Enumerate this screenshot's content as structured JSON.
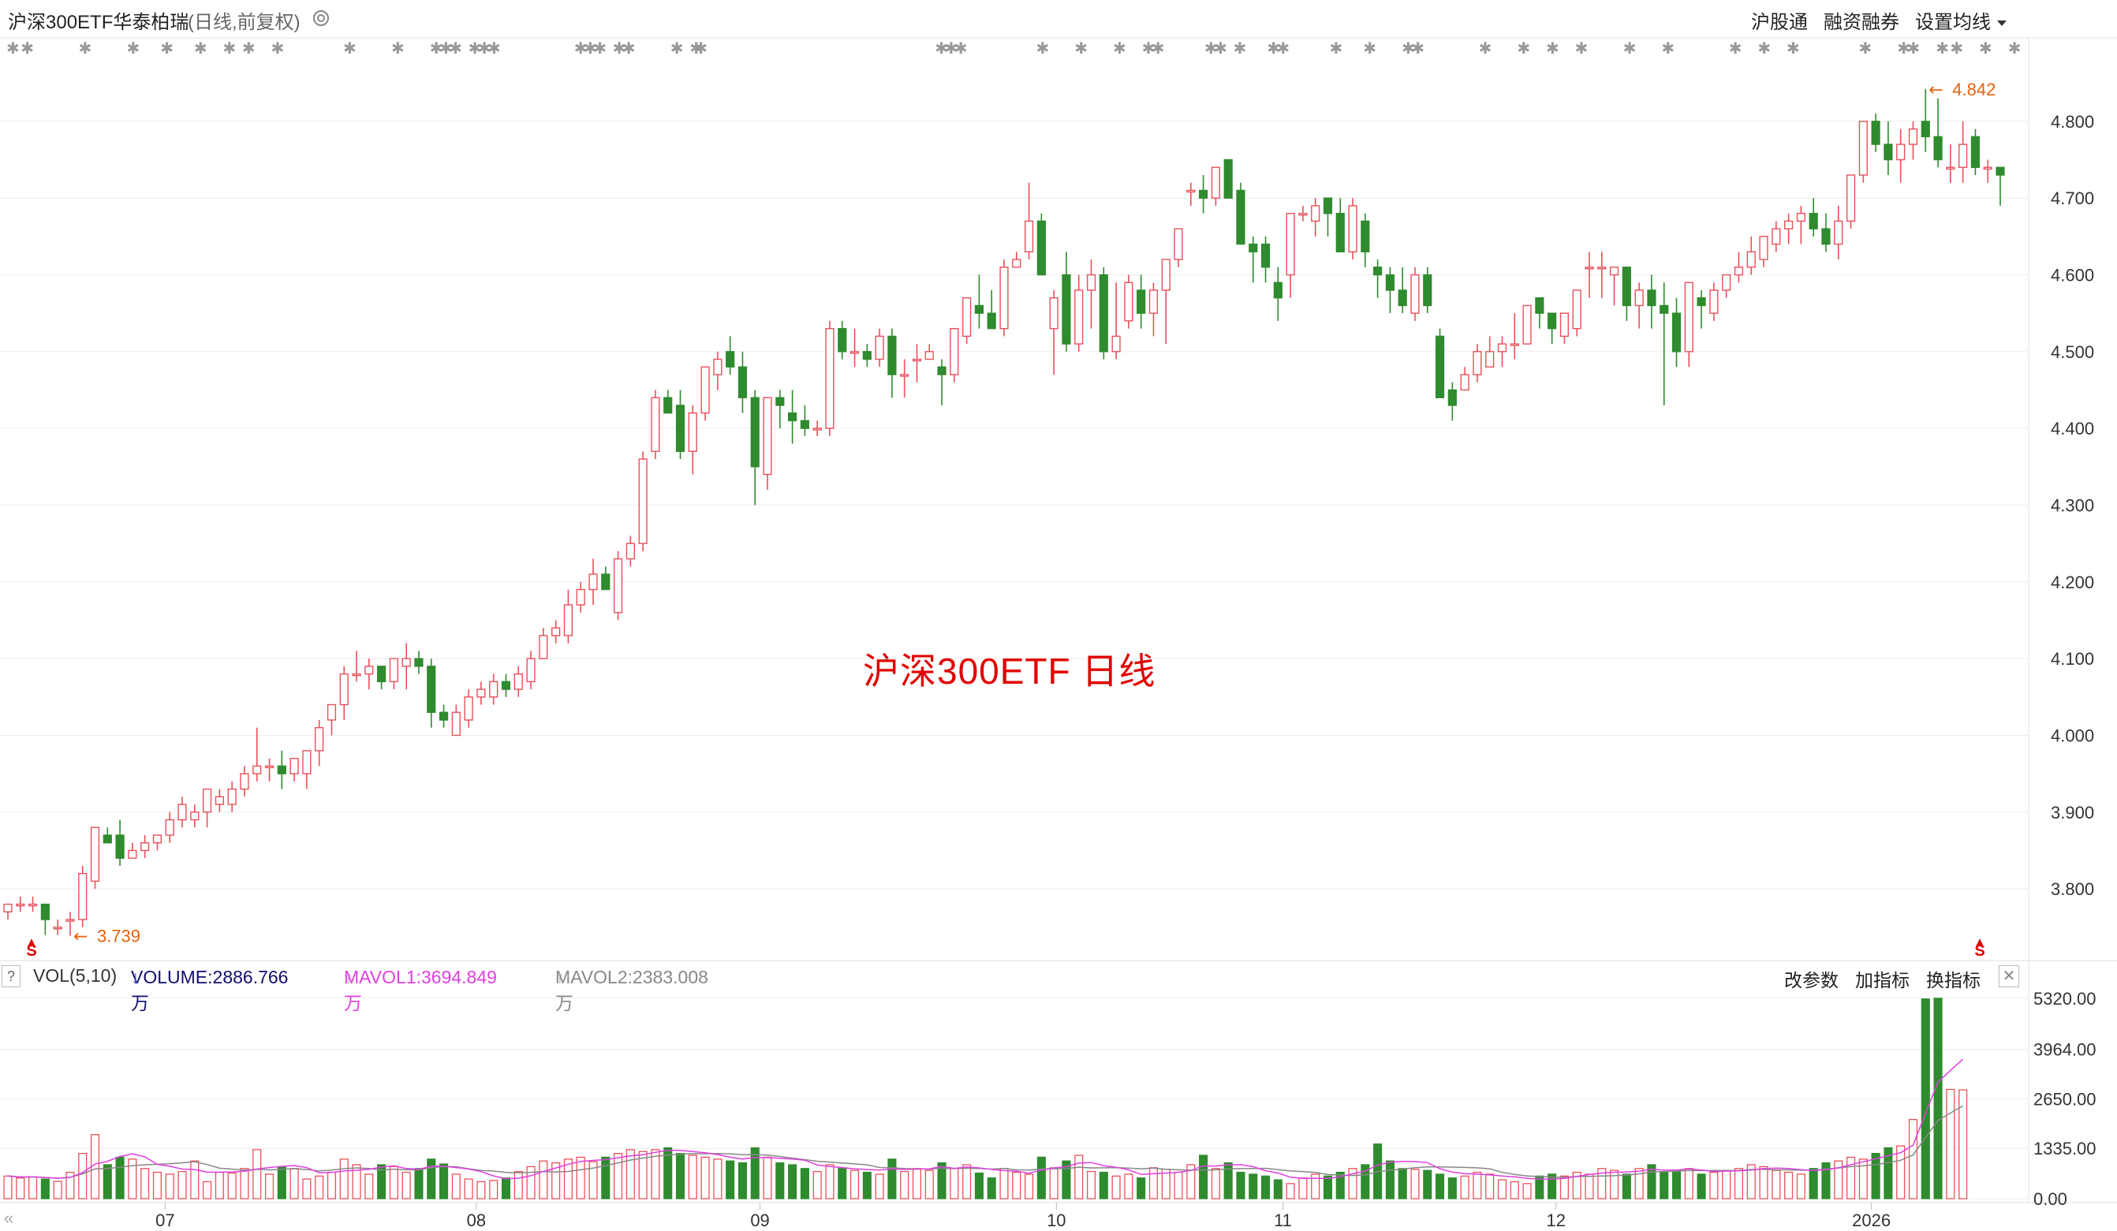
{
  "header": {
    "title": "沪深300ETF华泰柏瑞",
    "subtitle": "(日线,前复权)",
    "buttons": [
      "沪股通",
      "融资融券",
      "设置均线"
    ]
  },
  "watermark": "沪深300ETF  日线",
  "volume_header": {
    "help": "?",
    "name": "VOL(5,10)",
    "volume": "VOLUME:2886.766万",
    "mavol1": "MAVOL1:3694.849万",
    "mavol2": "MAVOL2:2383.008万",
    "right_buttons": [
      "改参数",
      "加指标",
      "换指标"
    ],
    "close": "✕"
  },
  "annotations": {
    "low_label": "3.739",
    "high_label": "4.842",
    "signal_mark": "S"
  },
  "colors": {
    "up": "#e8505a",
    "down": "#2e8b2e",
    "grid": "#ececec",
    "mavol1": "#e040e0",
    "mavol2": "#888888",
    "annotation": "#e8600a",
    "star": "#999999"
  },
  "chart_data": [
    {
      "type": "candlestick",
      "title": "沪深300ETF华泰柏瑞",
      "y_ticks": [
        "4.800",
        "4.700",
        "4.600",
        "4.500",
        "4.400",
        "4.300",
        "4.200",
        "4.100",
        "4.000",
        "3.900",
        "3.800"
      ],
      "ylim": [
        3.72,
        4.88
      ],
      "x_ticks": [
        "07",
        "08",
        "09",
        "10",
        "11",
        "12",
        "2026"
      ],
      "grid": true,
      "min_label": "3.739",
      "max_label": "4.842",
      "ohlc": [
        [
          3.77,
          3.78,
          3.76,
          3.78
        ],
        [
          3.78,
          3.79,
          3.77,
          3.78
        ],
        [
          3.78,
          3.79,
          3.77,
          3.78
        ],
        [
          3.78,
          3.78,
          3.74,
          3.76
        ],
        [
          3.75,
          3.76,
          3.74,
          3.75
        ],
        [
          3.76,
          3.77,
          3.739,
          3.76
        ],
        [
          3.76,
          3.83,
          3.75,
          3.82
        ],
        [
          3.81,
          3.88,
          3.8,
          3.88
        ],
        [
          3.87,
          3.88,
          3.86,
          3.86
        ],
        [
          3.87,
          3.89,
          3.83,
          3.84
        ],
        [
          3.84,
          3.86,
          3.84,
          3.85
        ],
        [
          3.85,
          3.87,
          3.84,
          3.86
        ],
        [
          3.86,
          3.87,
          3.85,
          3.87
        ],
        [
          3.87,
          3.9,
          3.86,
          3.89
        ],
        [
          3.89,
          3.92,
          3.88,
          3.91
        ],
        [
          3.89,
          3.91,
          3.88,
          3.9
        ],
        [
          3.9,
          3.93,
          3.88,
          3.93
        ],
        [
          3.91,
          3.93,
          3.9,
          3.92
        ],
        [
          3.91,
          3.94,
          3.9,
          3.93
        ],
        [
          3.93,
          3.96,
          3.92,
          3.95
        ],
        [
          3.95,
          4.01,
          3.94,
          3.96
        ],
        [
          3.96,
          3.97,
          3.94,
          3.96
        ],
        [
          3.96,
          3.98,
          3.93,
          3.95
        ],
        [
          3.95,
          3.97,
          3.94,
          3.97
        ],
        [
          3.95,
          3.98,
          3.93,
          3.98
        ],
        [
          3.98,
          4.02,
          3.96,
          4.01
        ],
        [
          4.02,
          4.04,
          4.0,
          4.04
        ],
        [
          4.04,
          4.09,
          4.02,
          4.08
        ],
        [
          4.08,
          4.11,
          4.07,
          4.08
        ],
        [
          4.08,
          4.1,
          4.06,
          4.09
        ],
        [
          4.09,
          4.09,
          4.06,
          4.07
        ],
        [
          4.07,
          4.1,
          4.06,
          4.1
        ],
        [
          4.09,
          4.12,
          4.06,
          4.1
        ],
        [
          4.1,
          4.11,
          4.08,
          4.09
        ],
        [
          4.09,
          4.1,
          4.01,
          4.03
        ],
        [
          4.03,
          4.04,
          4.01,
          4.02
        ],
        [
          4.0,
          4.04,
          4.0,
          4.03
        ],
        [
          4.02,
          4.06,
          4.01,
          4.05
        ],
        [
          4.05,
          4.07,
          4.04,
          4.06
        ],
        [
          4.05,
          4.08,
          4.04,
          4.07
        ],
        [
          4.07,
          4.08,
          4.05,
          4.06
        ],
        [
          4.06,
          4.09,
          4.05,
          4.08
        ],
        [
          4.07,
          4.11,
          4.06,
          4.1
        ],
        [
          4.1,
          4.14,
          4.1,
          4.13
        ],
        [
          4.13,
          4.15,
          4.12,
          4.14
        ],
        [
          4.13,
          4.19,
          4.12,
          4.17
        ],
        [
          4.17,
          4.2,
          4.16,
          4.19
        ],
        [
          4.19,
          4.23,
          4.17,
          4.21
        ],
        [
          4.21,
          4.22,
          4.19,
          4.19
        ],
        [
          4.16,
          4.24,
          4.15,
          4.23
        ],
        [
          4.23,
          4.26,
          4.22,
          4.25
        ],
        [
          4.25,
          4.37,
          4.24,
          4.36
        ],
        [
          4.37,
          4.45,
          4.36,
          4.44
        ],
        [
          4.44,
          4.45,
          4.42,
          4.42
        ],
        [
          4.43,
          4.45,
          4.36,
          4.37
        ],
        [
          4.37,
          4.43,
          4.34,
          4.42
        ],
        [
          4.42,
          4.48,
          4.41,
          4.48
        ],
        [
          4.47,
          4.5,
          4.45,
          4.49
        ],
        [
          4.5,
          4.52,
          4.47,
          4.48
        ],
        [
          4.48,
          4.5,
          4.42,
          4.44
        ],
        [
          4.44,
          4.45,
          4.3,
          4.35
        ],
        [
          4.34,
          4.44,
          4.32,
          4.44
        ],
        [
          4.44,
          4.45,
          4.4,
          4.43
        ],
        [
          4.42,
          4.45,
          4.38,
          4.41
        ],
        [
          4.41,
          4.43,
          4.39,
          4.4
        ],
        [
          4.4,
          4.41,
          4.39,
          4.4
        ],
        [
          4.4,
          4.54,
          4.39,
          4.53
        ],
        [
          4.53,
          4.54,
          4.49,
          4.5
        ],
        [
          4.5,
          4.53,
          4.48,
          4.5
        ],
        [
          4.5,
          4.51,
          4.48,
          4.49
        ],
        [
          4.49,
          4.53,
          4.48,
          4.52
        ],
        [
          4.52,
          4.53,
          4.44,
          4.47
        ],
        [
          4.47,
          4.49,
          4.44,
          4.47
        ],
        [
          4.49,
          4.51,
          4.46,
          4.49
        ],
        [
          4.49,
          4.51,
          4.49,
          4.5
        ],
        [
          4.48,
          4.49,
          4.43,
          4.47
        ],
        [
          4.47,
          4.53,
          4.46,
          4.53
        ],
        [
          4.52,
          4.57,
          4.51,
          4.57
        ],
        [
          4.56,
          4.6,
          4.53,
          4.55
        ],
        [
          4.55,
          4.58,
          4.53,
          4.53
        ],
        [
          4.53,
          4.62,
          4.52,
          4.61
        ],
        [
          4.61,
          4.63,
          4.61,
          4.62
        ],
        [
          4.63,
          4.72,
          4.62,
          4.67
        ],
        [
          4.67,
          4.68,
          4.6,
          4.6
        ],
        [
          4.53,
          4.58,
          4.47,
          4.57
        ],
        [
          4.6,
          4.63,
          4.5,
          4.51
        ],
        [
          4.51,
          4.6,
          4.5,
          4.58
        ],
        [
          4.58,
          4.62,
          4.53,
          4.6
        ],
        [
          4.6,
          4.61,
          4.49,
          4.5
        ],
        [
          4.5,
          4.59,
          4.49,
          4.52
        ],
        [
          4.54,
          4.6,
          4.53,
          4.59
        ],
        [
          4.58,
          4.6,
          4.53,
          4.55
        ],
        [
          4.55,
          4.59,
          4.52,
          4.58
        ],
        [
          4.58,
          4.61,
          4.51,
          4.62
        ],
        [
          4.62,
          4.65,
          4.61,
          4.66
        ],
        [
          4.71,
          4.72,
          4.69,
          4.71
        ],
        [
          4.71,
          4.73,
          4.68,
          4.7
        ],
        [
          4.7,
          4.74,
          4.69,
          4.74
        ],
        [
          4.75,
          4.75,
          4.7,
          4.7
        ],
        [
          4.71,
          4.72,
          4.64,
          4.64
        ],
        [
          4.64,
          4.65,
          4.59,
          4.63
        ],
        [
          4.64,
          4.65,
          4.59,
          4.61
        ],
        [
          4.59,
          4.61,
          4.54,
          4.57
        ],
        [
          4.6,
          4.68,
          4.57,
          4.68
        ],
        [
          4.68,
          4.69,
          4.67,
          4.68
        ],
        [
          4.67,
          4.7,
          4.65,
          4.69
        ],
        [
          4.7,
          4.7,
          4.65,
          4.68
        ],
        [
          4.68,
          4.7,
          4.64,
          4.63
        ],
        [
          4.63,
          4.7,
          4.62,
          4.69
        ],
        [
          4.67,
          4.68,
          4.61,
          4.63
        ],
        [
          4.61,
          4.62,
          4.57,
          4.6
        ],
        [
          4.6,
          4.61,
          4.55,
          4.58
        ],
        [
          4.58,
          4.61,
          4.55,
          4.56
        ],
        [
          4.55,
          4.61,
          4.54,
          4.6
        ],
        [
          4.6,
          4.61,
          4.55,
          4.56
        ],
        [
          4.52,
          4.53,
          4.44,
          4.44
        ],
        [
          4.45,
          4.46,
          4.41,
          4.43
        ],
        [
          4.45,
          4.48,
          4.45,
          4.47
        ],
        [
          4.47,
          4.51,
          4.46,
          4.5
        ],
        [
          4.48,
          4.52,
          4.48,
          4.5
        ],
        [
          4.5,
          4.52,
          4.48,
          4.51
        ],
        [
          4.51,
          4.55,
          4.49,
          4.51
        ],
        [
          4.51,
          4.56,
          4.51,
          4.56
        ],
        [
          4.57,
          4.57,
          4.53,
          4.55
        ],
        [
          4.55,
          4.55,
          4.51,
          4.53
        ],
        [
          4.52,
          4.55,
          4.51,
          4.55
        ],
        [
          4.53,
          4.58,
          4.52,
          4.58
        ],
        [
          4.61,
          4.63,
          4.57,
          4.61
        ],
        [
          4.61,
          4.63,
          4.57,
          4.61
        ],
        [
          4.6,
          4.61,
          4.56,
          4.61
        ],
        [
          4.61,
          4.61,
          4.54,
          4.56
        ],
        [
          4.56,
          4.59,
          4.53,
          4.58
        ],
        [
          4.58,
          4.6,
          4.53,
          4.56
        ],
        [
          4.56,
          4.59,
          4.43,
          4.55
        ],
        [
          4.55,
          4.57,
          4.48,
          4.5
        ],
        [
          4.5,
          4.59,
          4.48,
          4.59
        ],
        [
          4.57,
          4.58,
          4.53,
          4.56
        ],
        [
          4.55,
          4.59,
          4.54,
          4.58
        ],
        [
          4.58,
          4.59,
          4.57,
          4.6
        ],
        [
          4.6,
          4.63,
          4.59,
          4.61
        ],
        [
          4.61,
          4.65,
          4.6,
          4.63
        ],
        [
          4.62,
          4.65,
          4.61,
          4.65
        ],
        [
          4.64,
          4.67,
          4.63,
          4.66
        ],
        [
          4.66,
          4.68,
          4.64,
          4.67
        ],
        [
          4.67,
          4.69,
          4.64,
          4.68
        ],
        [
          4.68,
          4.7,
          4.65,
          4.66
        ],
        [
          4.66,
          4.68,
          4.63,
          4.64
        ],
        [
          4.64,
          4.69,
          4.62,
          4.67
        ],
        [
          4.67,
          4.73,
          4.66,
          4.73
        ],
        [
          4.73,
          4.8,
          4.72,
          4.8
        ],
        [
          4.8,
          4.81,
          4.76,
          4.77
        ],
        [
          4.77,
          4.8,
          4.73,
          4.75
        ],
        [
          4.75,
          4.79,
          4.72,
          4.77
        ],
        [
          4.77,
          4.8,
          4.75,
          4.79
        ],
        [
          4.8,
          4.842,
          4.76,
          4.78
        ],
        [
          4.78,
          4.83,
          4.74,
          4.75
        ],
        [
          4.74,
          4.77,
          4.72,
          4.74
        ],
        [
          4.74,
          4.8,
          4.72,
          4.77
        ],
        [
          4.78,
          4.79,
          4.73,
          4.74
        ],
        [
          4.74,
          4.75,
          4.72,
          4.74
        ],
        [
          4.74,
          4.74,
          4.69,
          4.73
        ]
      ]
    },
    {
      "type": "bar",
      "title": "VOL(5,10)",
      "y_ticks": [
        "5320.00",
        "3964.00",
        "2650.00",
        "1335.00",
        "0.00"
      ],
      "ylim": [
        0,
        5400
      ],
      "series": [
        {
          "name": "VOLUME",
          "unit": "万"
        },
        {
          "name": "MAVOL1"
        },
        {
          "name": "MAVOL2"
        }
      ],
      "values": [
        600,
        550,
        580,
        520,
        460,
        700,
        1200,
        1700,
        900,
        1100,
        1050,
        800,
        700,
        650,
        720,
        1000,
        450,
        700,
        680,
        800,
        1300,
        650,
        850,
        800,
        520,
        600,
        700,
        1050,
        900,
        650,
        900,
        850,
        700,
        800,
        1050,
        920,
        650,
        520,
        450,
        480,
        550,
        720,
        850,
        1000,
        950,
        1050,
        1100,
        980,
        1100,
        1200,
        1300,
        1250,
        1300,
        1350,
        1200,
        1150,
        1100,
        1050,
        1000,
        950,
        1350,
        1100,
        950,
        900,
        800,
        720,
        900,
        800,
        750,
        700,
        650,
        1050,
        720,
        800,
        750,
        950,
        800,
        900,
        680,
        550,
        800,
        700,
        650,
        1100,
        820,
        1000,
        1150,
        720,
        700,
        600,
        650,
        550,
        820,
        780,
        700,
        900,
        1150,
        800,
        950,
        700,
        650,
        600,
        500,
        400,
        550,
        650,
        600,
        700,
        800,
        900,
        1450,
        1000,
        800,
        780,
        750,
        650,
        550,
        600,
        700,
        650,
        500,
        450,
        400,
        600,
        650,
        600,
        700,
        650,
        800,
        750,
        650,
        800,
        900,
        700,
        750,
        800,
        650,
        700,
        750,
        800,
        900,
        850,
        750,
        700,
        650,
        800,
        950,
        1000,
        1100,
        1050,
        1200,
        1350,
        1400,
        2100,
        5300,
        5320,
        2900,
        2887
      ],
      "volume": "2886.766万",
      "mavol1": "3694.849万",
      "mavol2": "2383.008万"
    }
  ]
}
